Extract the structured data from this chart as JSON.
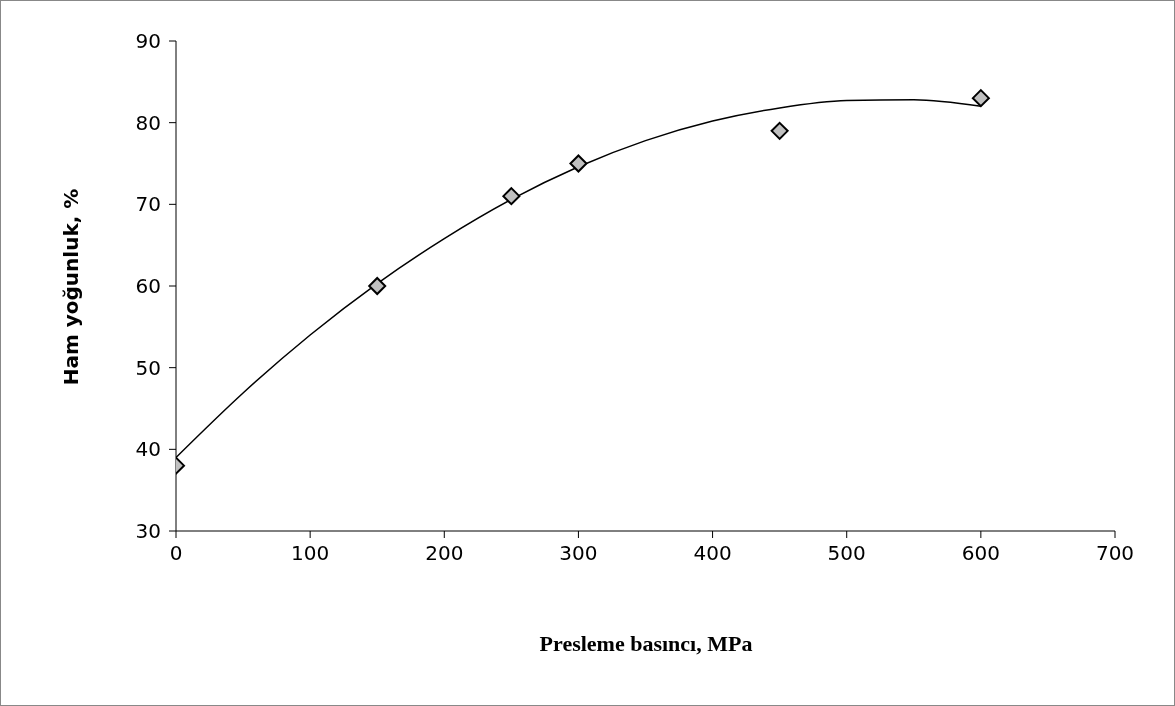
{
  "chart_data": {
    "type": "scatter",
    "xlabel": "Presleme basıncı, MPa",
    "ylabel": "Ham yoğunluk, %",
    "xlim": [
      0,
      700
    ],
    "ylim": [
      30,
      90
    ],
    "xticks": [
      0,
      100,
      200,
      300,
      400,
      500,
      600,
      700
    ],
    "yticks": [
      30,
      40,
      50,
      60,
      70,
      80,
      90
    ],
    "series": [
      {
        "type": "line",
        "color": "#000000",
        "marker": "none",
        "x": [
          0,
          50,
          100,
          150,
          200,
          250,
          300,
          350,
          400,
          450,
          500,
          550,
          600
        ],
        "values": [
          39,
          46.9,
          54,
          60.3,
          65.8,
          70.6,
          74.6,
          77.8,
          80.2,
          81.8,
          82.7,
          82.8,
          82
        ]
      },
      {
        "color": "#c0c0c0",
        "marker": "diamond",
        "x": [
          0,
          150,
          250,
          300,
          450,
          600
        ],
        "values": [
          38,
          60,
          71,
          75,
          79,
          83
        ]
      }
    ]
  }
}
